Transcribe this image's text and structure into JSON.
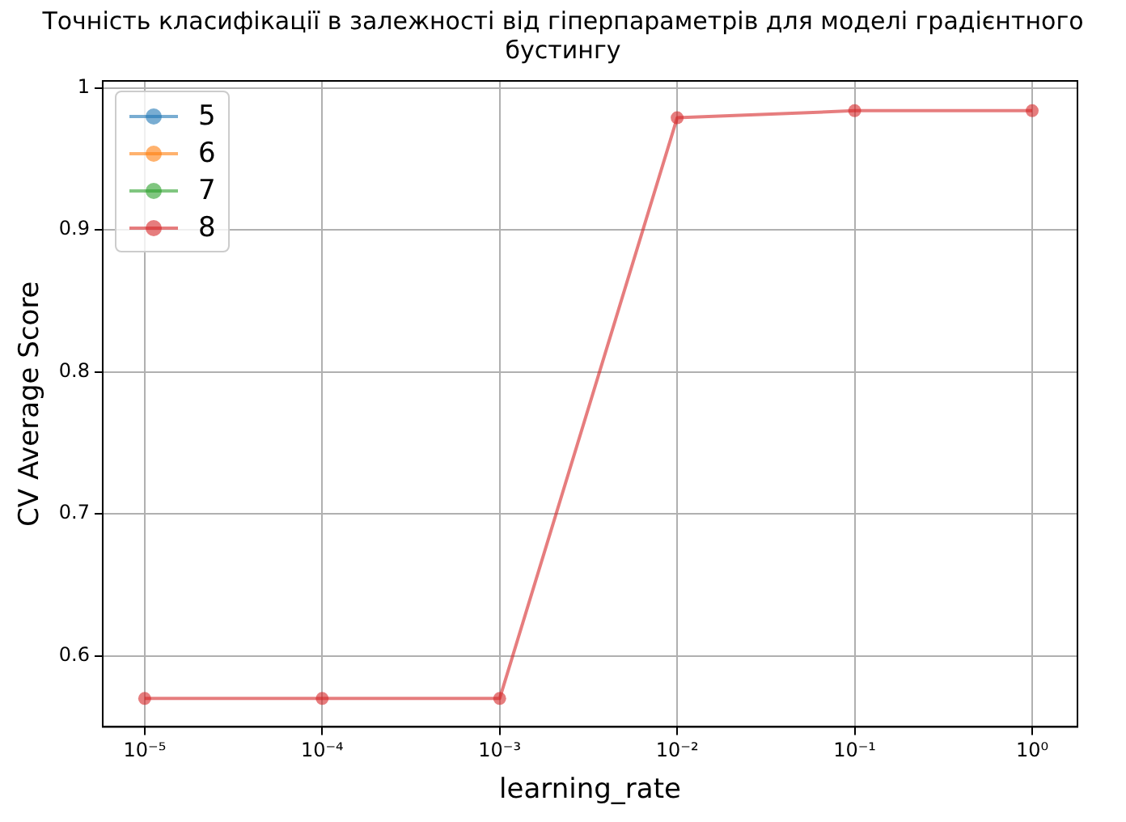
{
  "chart_data": {
    "type": "line",
    "title": "Точність класифікації в залежності від гіперпараметрів для моделі градієнтного бустингу",
    "xlabel": "learning_rate",
    "ylabel": "CV Average Score",
    "x": [
      1e-05,
      0.0001,
      0.001,
      0.01,
      0.1,
      1
    ],
    "series": [
      {
        "name": "5",
        "color": "#1f77b4",
        "values": [
          null,
          null,
          null,
          null,
          null,
          null
        ]
      },
      {
        "name": "6",
        "color": "#ff7f0e",
        "values": [
          null,
          null,
          null,
          null,
          null,
          null
        ]
      },
      {
        "name": "7",
        "color": "#2ca02c",
        "values": [
          null,
          null,
          null,
          null,
          null,
          null
        ]
      },
      {
        "name": "8",
        "color": "#d62728",
        "values": [
          0.57,
          0.57,
          0.57,
          0.979,
          0.984,
          0.984
        ]
      }
    ],
    "log": "x",
    "xlim": [
      5.8e-06,
      1.8
    ],
    "xticks": [
      {
        "value": 1e-05,
        "label": "10⁻⁵"
      },
      {
        "value": 0.0001,
        "label": "10⁻⁴"
      },
      {
        "value": 0.001,
        "label": "10⁻³"
      },
      {
        "value": 0.01,
        "label": "10⁻²"
      },
      {
        "value": 0.1,
        "label": "10⁻¹"
      },
      {
        "value": 1,
        "label": "10⁰"
      }
    ],
    "ylim": [
      0.55,
      1.005
    ],
    "yticks": [
      0.6,
      0.7,
      0.8,
      0.9,
      1.0
    ],
    "grid": true,
    "legend": "top left",
    "marker": "circle",
    "line_style": "solid"
  }
}
